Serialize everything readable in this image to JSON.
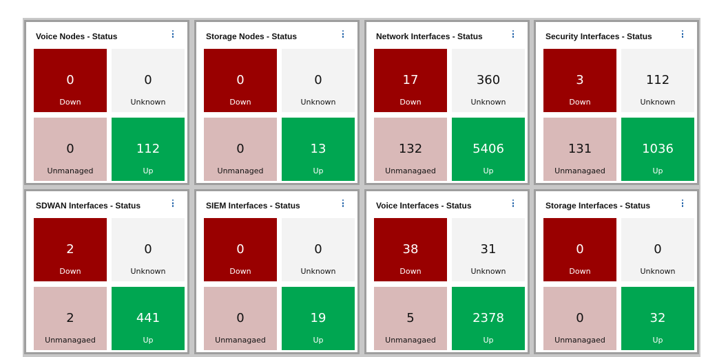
{
  "colors": {
    "down": "#990000",
    "unknown": "#f3f3f3",
    "unmanaged": "#d9b9b8",
    "up": "#00a651",
    "menu_icon": "#1a5da6"
  },
  "widgets": [
    {
      "title": "Voice Nodes - Status",
      "down": {
        "value": "0",
        "label": "Down"
      },
      "unknown": {
        "value": "0",
        "label": "Unknown"
      },
      "unmanaged": {
        "value": "0",
        "label": "Unmanaged"
      },
      "up": {
        "value": "112",
        "label": "Up"
      }
    },
    {
      "title": "Storage Nodes - Status",
      "down": {
        "value": "0",
        "label": "Down"
      },
      "unknown": {
        "value": "0",
        "label": "Unknown"
      },
      "unmanaged": {
        "value": "0",
        "label": "Unmanaged"
      },
      "up": {
        "value": "13",
        "label": "Up"
      }
    },
    {
      "title": "Network Interfaces - Status",
      "down": {
        "value": "17",
        "label": "Down"
      },
      "unknown": {
        "value": "360",
        "label": "Unknown"
      },
      "unmanaged": {
        "value": "132",
        "label": "Unmanagaed"
      },
      "up": {
        "value": "5406",
        "label": "Up"
      }
    },
    {
      "title": "Security Interfaces - Status",
      "down": {
        "value": "3",
        "label": "Down"
      },
      "unknown": {
        "value": "112",
        "label": "Unknown"
      },
      "unmanaged": {
        "value": "131",
        "label": "Unmanagaed"
      },
      "up": {
        "value": "1036",
        "label": "Up"
      }
    },
    {
      "title": "SDWAN Interfaces - Status",
      "down": {
        "value": "2",
        "label": "Down"
      },
      "unknown": {
        "value": "0",
        "label": "Unknown"
      },
      "unmanaged": {
        "value": "2",
        "label": "Unmanagaed"
      },
      "up": {
        "value": "441",
        "label": "Up"
      }
    },
    {
      "title": "SIEM Interfaces - Status",
      "down": {
        "value": "0",
        "label": "Down"
      },
      "unknown": {
        "value": "0",
        "label": "Unknown"
      },
      "unmanaged": {
        "value": "0",
        "label": "Unmanagaed"
      },
      "up": {
        "value": "19",
        "label": "Up"
      }
    },
    {
      "title": "Voice Interfaces - Status",
      "down": {
        "value": "38",
        "label": "Down"
      },
      "unknown": {
        "value": "31",
        "label": "Unknown"
      },
      "unmanaged": {
        "value": "5",
        "label": "Unmanagaed"
      },
      "up": {
        "value": "2378",
        "label": "Up"
      }
    },
    {
      "title": "Storage Interfaces - Status",
      "down": {
        "value": "0",
        "label": "Down"
      },
      "unknown": {
        "value": "0",
        "label": "Unknown"
      },
      "unmanaged": {
        "value": "0",
        "label": "Unmanagaed"
      },
      "up": {
        "value": "32",
        "label": "Up"
      }
    }
  ]
}
